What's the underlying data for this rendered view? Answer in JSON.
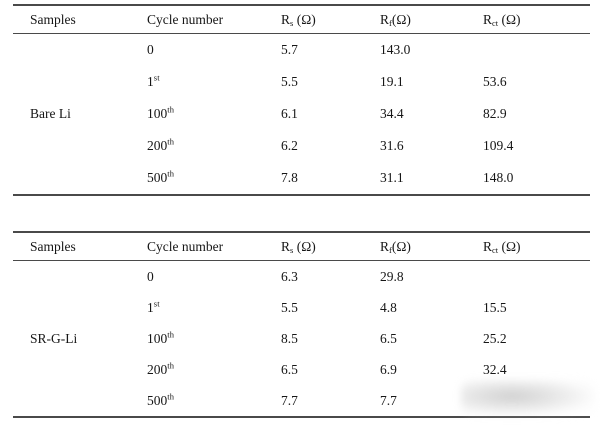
{
  "page": {
    "background": "#ffffff",
    "text_color": "#161616",
    "rule_color": "#4a4a4a"
  },
  "headers": {
    "samples": "Samples",
    "cycle": "Cycle number",
    "r_cols": [
      {
        "base": "R",
        "sub": "s",
        "unit": " (Ω)"
      },
      {
        "base": "R",
        "sub": "f",
        "unit": "(Ω)"
      },
      {
        "base": "R",
        "sub": "ct",
        "unit": " (Ω)"
      }
    ]
  },
  "tables": [
    {
      "sample": "Bare Li",
      "rows": [
        {
          "cycle": {
            "num": "0",
            "sup": ""
          },
          "rs": "5.7",
          "rf": "143.0",
          "rct": ""
        },
        {
          "cycle": {
            "num": "1",
            "sup": "st"
          },
          "rs": "5.5",
          "rf": "19.1",
          "rct": "53.6"
        },
        {
          "cycle": {
            "num": "100",
            "sup": "th"
          },
          "rs": "6.1",
          "rf": "34.4",
          "rct": "82.9"
        },
        {
          "cycle": {
            "num": "200",
            "sup": "th"
          },
          "rs": "6.2",
          "rf": "31.6",
          "rct": "109.4"
        },
        {
          "cycle": {
            "num": "500",
            "sup": "th"
          },
          "rs": "7.8",
          "rf": "31.1",
          "rct": "148.0"
        }
      ]
    },
    {
      "sample": "SR-G-Li",
      "rows": [
        {
          "cycle": {
            "num": "0",
            "sup": ""
          },
          "rs": "6.3",
          "rf": "29.8",
          "rct": ""
        },
        {
          "cycle": {
            "num": "1",
            "sup": "st"
          },
          "rs": "5.5",
          "rf": "4.8",
          "rct": "15.5"
        },
        {
          "cycle": {
            "num": "100",
            "sup": "th"
          },
          "rs": "8.5",
          "rf": "6.5",
          "rct": "25.2"
        },
        {
          "cycle": {
            "num": "200",
            "sup": "th"
          },
          "rs": "6.5",
          "rf": "6.9",
          "rct": "32.4"
        },
        {
          "cycle": {
            "num": "500",
            "sup": "th"
          },
          "rs": "7.7",
          "rf": "7.7",
          "rct": ""
        }
      ]
    }
  ],
  "watermark": {
    "label": "blurred-watermark"
  }
}
